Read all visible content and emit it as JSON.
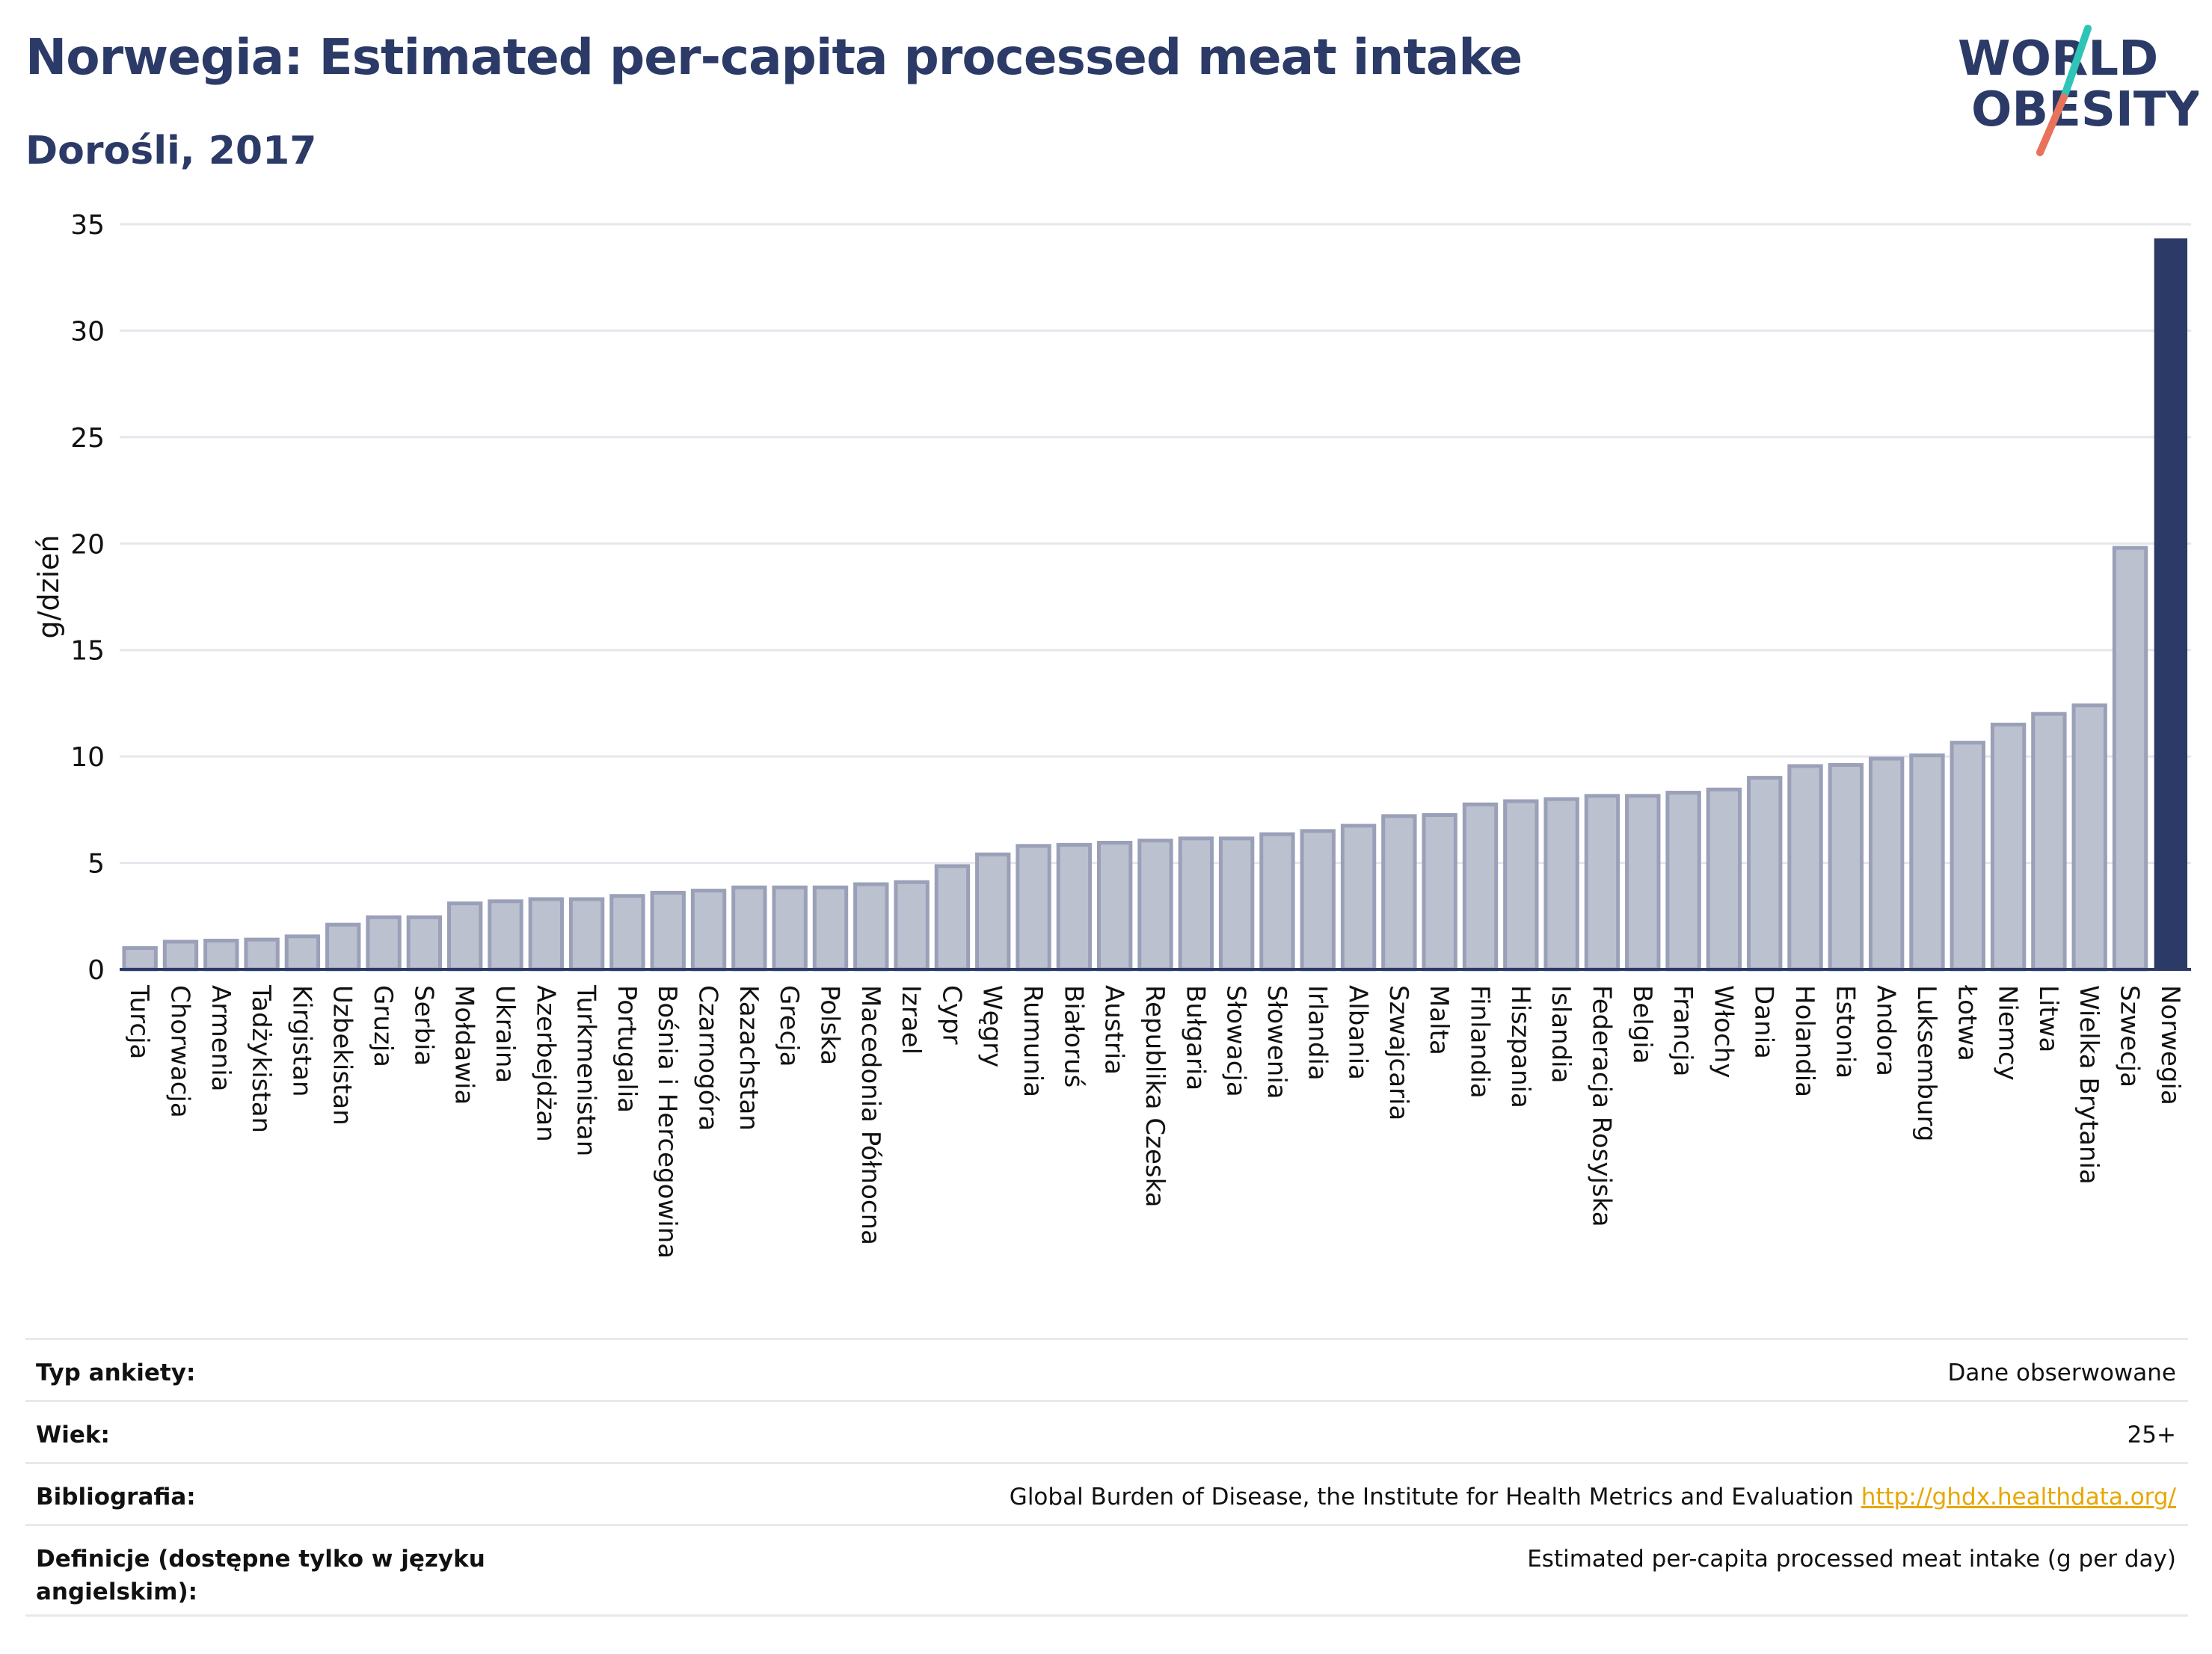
{
  "header": {
    "title": "Norwegia: Estimated per-capita processed meat intake",
    "subtitle": "Dorośli, 2017"
  },
  "logo": {
    "line1": "WORLD",
    "line2": "OBESITY",
    "colors": {
      "text": "#2b3a67",
      "slash_teal": "#2ec4b6",
      "slash_coral": "#e8735a"
    }
  },
  "colors": {
    "bar_fill": "#bcc1cf",
    "bar_stroke": "#9aa0b8",
    "highlight_fill": "#2b3a67",
    "grid": "#e6e6ee",
    "axis_text": "#111111"
  },
  "chart_data": {
    "type": "bar",
    "title": "Norwegia: Estimated per-capita processed meat intake",
    "subtitle": "Dorośli, 2017",
    "xlabel": "",
    "ylabel": "g/dzień",
    "ylim": [
      0,
      35
    ],
    "yticks": [
      0,
      5,
      10,
      15,
      20,
      25,
      30,
      35
    ],
    "grid": true,
    "highlight": "Norwegia",
    "categories": [
      "Turcja",
      "Chorwacja",
      "Armenia",
      "Tadżykistan",
      "Kirgistan",
      "Uzbekistan",
      "Gruzja",
      "Serbia",
      "Mołdawia",
      "Ukraina",
      "Azerbejdżan",
      "Turkmenistan",
      "Portugalia",
      "Bośnia i Hercegowina",
      "Czarnogóra",
      "Kazachstan",
      "Grecja",
      "Polska",
      "Macedonia Północna",
      "Izrael",
      "Cypr",
      "Węgry",
      "Rumunia",
      "Białoruś",
      "Austria",
      "Republika Czeska",
      "Bułgaria",
      "Słowacja",
      "Słowenia",
      "Irlandia",
      "Albania",
      "Szwajcaria",
      "Malta",
      "Finlandia",
      "Hiszpania",
      "Islandia",
      "Federacja Rosyjska",
      "Belgia",
      "Francja",
      "Włochy",
      "Dania",
      "Holandia",
      "Estonia",
      "Andora",
      "Luksemburg",
      "Łotwa",
      "Niemcy",
      "Litwa",
      "Wielka Brytania",
      "Szwecja",
      "Norwegia"
    ],
    "values": [
      1.0,
      1.3,
      1.35,
      1.4,
      1.55,
      2.1,
      2.45,
      2.45,
      3.1,
      3.2,
      3.3,
      3.3,
      3.45,
      3.6,
      3.7,
      3.85,
      3.85,
      3.85,
      4.0,
      4.1,
      4.85,
      5.4,
      5.8,
      5.85,
      5.95,
      6.05,
      6.15,
      6.15,
      6.35,
      6.5,
      6.75,
      7.2,
      7.25,
      7.75,
      7.9,
      8.0,
      8.15,
      8.15,
      8.3,
      8.45,
      9.0,
      9.55,
      9.6,
      9.9,
      10.05,
      10.65,
      11.5,
      12.0,
      12.4,
      19.8,
      34.3
    ]
  },
  "info_table": {
    "rows": [
      {
        "label": "Typ ankiety:",
        "value": "Dane obserwowane"
      },
      {
        "label": "Wiek:",
        "value": "25+"
      },
      {
        "label": "Bibliografia:",
        "value": "Global Burden of Disease, the Institute for Health Metrics and Evaluation",
        "link": "http://ghdx.healthdata.org/"
      },
      {
        "label": "Definicje (dostępne tylko w języku angielskim):",
        "value": "Estimated per-capita processed meat intake (g per day)"
      }
    ]
  }
}
